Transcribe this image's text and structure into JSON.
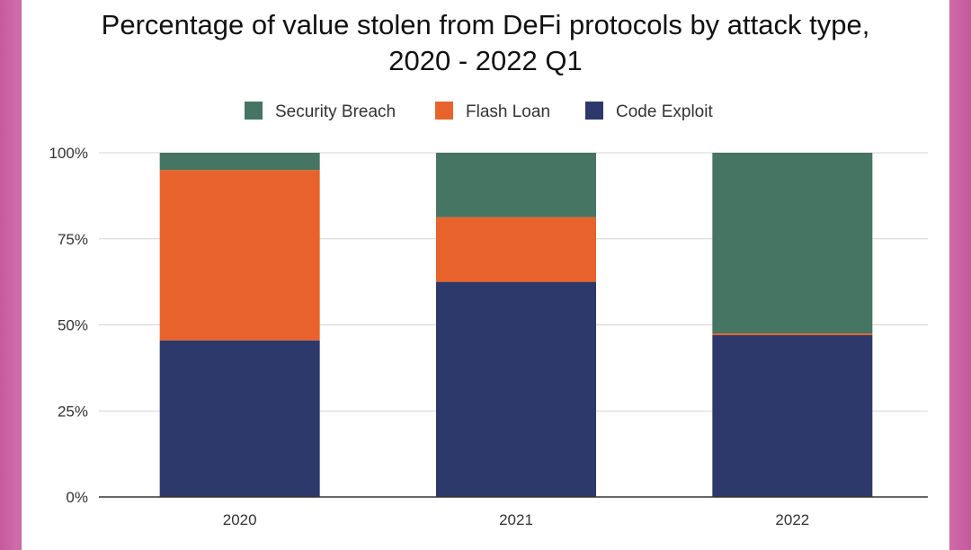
{
  "chart_data": {
    "type": "bar",
    "stacked": true,
    "title": "Percentage of value stolen from DeFi protocols by attack type,",
    "subtitle": "2020 - 2022 Q1",
    "xlabel": "",
    "ylabel": "",
    "categories": [
      "2020",
      "2021",
      "2022"
    ],
    "series": [
      {
        "name": "Code Exploit",
        "color": "#2d386b",
        "values": [
          45.5,
          62.5,
          47.0
        ]
      },
      {
        "name": "Flash Loan",
        "color": "#e8632b",
        "values": [
          49.5,
          18.8,
          0.5
        ]
      },
      {
        "name": "Security Breach",
        "color": "#467563",
        "values": [
          5.0,
          18.7,
          52.5
        ]
      }
    ],
    "legend_order": [
      "Security Breach",
      "Flash Loan",
      "Code Exploit"
    ],
    "ylim": [
      0,
      100
    ],
    "yticks": [
      "0%",
      "25%",
      "50%",
      "75%",
      "100%"
    ],
    "grid": true,
    "legend_position": "top"
  }
}
